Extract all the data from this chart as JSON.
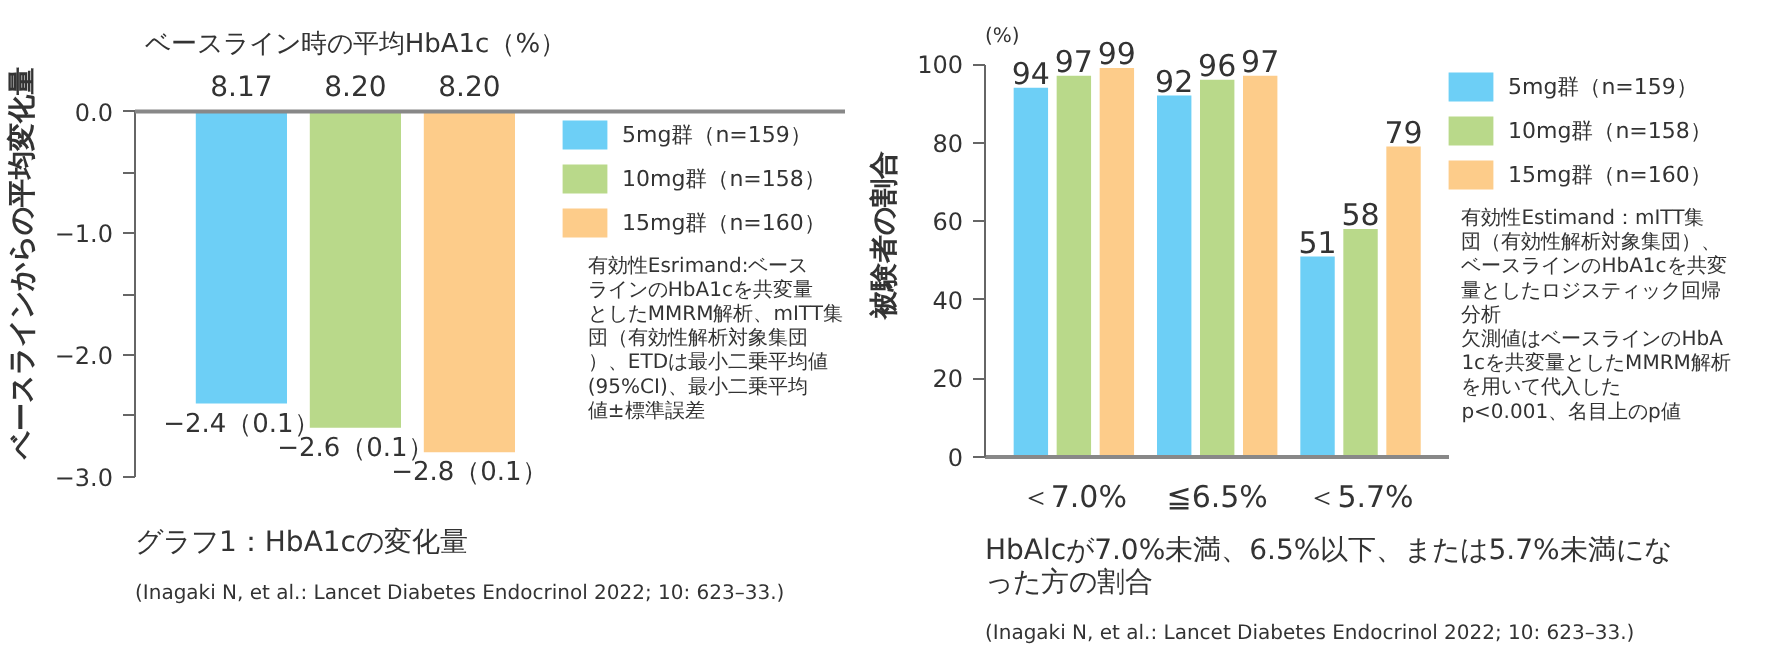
{
  "chart_data": [
    {
      "type": "bar",
      "title": "グラフ1：HbA1cの変化量",
      "ylabel": "ベースラインからの平均変化量",
      "categories": [
        null
      ],
      "series": [
        {
          "name": "5mg群（n=159）",
          "color": "#6dcff6",
          "values": [
            -2.4
          ],
          "value_labels": [
            "−2.4（0.1）"
          ]
        },
        {
          "name": "10mg群（n=158）",
          "color": "#b9d98a",
          "values": [
            -2.6
          ],
          "value_labels": [
            "−2.6（0.1）"
          ]
        },
        {
          "name": "15mg群（n=160）",
          "color": "#fdcc8a",
          "values": [
            -2.8
          ],
          "value_labels": [
            "−2.8（0.1）"
          ]
        }
      ],
      "ylim": [
        -3.0,
        0.0
      ],
      "yticks": [
        {
          "value": -3.0,
          "label": "−3.0"
        },
        {
          "value": -2.5,
          "label": null
        },
        {
          "value": -2.0,
          "label": "−2.0"
        },
        {
          "value": -1.5,
          "label": null
        },
        {
          "value": -1.0,
          "label": "−1.0"
        },
        {
          "value": -0.5,
          "label": null
        },
        {
          "value": 0.0,
          "label": "0.0"
        }
      ],
      "tick_labels": "y",
      "grid": false,
      "legend": "right",
      "annotations": [
        "ベースライン時の平均HbA1c（%）",
        "8.17",
        "8.20",
        "8.20",
        "有効性Esrimand:ベースラインのHbA1cを共変量としたMMRM解析、mITT集団（有効性解析対象集団）、ETDは最小二乗平均値(95%CI)、最小二乗平均値±標準誤差",
        "(Inagaki N, et al.: Lancet Diabetes Endocrinol 2022; 10: 623–33.)"
      ]
    },
    {
      "type": "bar",
      "title": "HbAlcが7.0%未満、6.5%以下、または5.7%未満になった方の割合",
      "ylabel": "被験者の割合",
      "categories": [
        "＜7.0%",
        "≦6.5%",
        "＜5.7%"
      ],
      "series": [
        {
          "name": "5mg群（n=159）",
          "color": "#6dcff6",
          "values": [
            94,
            92,
            51
          ]
        },
        {
          "name": "10mg群（n=158）",
          "color": "#b9d98a",
          "values": [
            97,
            96,
            58
          ]
        },
        {
          "name": "15mg群（n=160）",
          "color": "#fdcc8a",
          "values": [
            99,
            97,
            79
          ]
        }
      ],
      "ylim": [
        0,
        100
      ],
      "yticks": [
        0,
        20,
        40,
        60,
        80,
        100
      ],
      "grid": false,
      "legend": "right",
      "data_labels": true,
      "annotations": [
        "(%)",
        "有効性Estimand：mITT集団（有効性解析対象集団）、ベースラインのHbA1cを共変量としたロジスティック回帰分析",
        "欠測値はベースラインのHbA1cを共変量としたMMRM解析を用いて代入した",
        "p<0.001、名目上のp値",
        "(Inagaki N, et al.: Lancet Diabetes Endocrinol 2022; 10: 623–33.)"
      ]
    }
  ]
}
